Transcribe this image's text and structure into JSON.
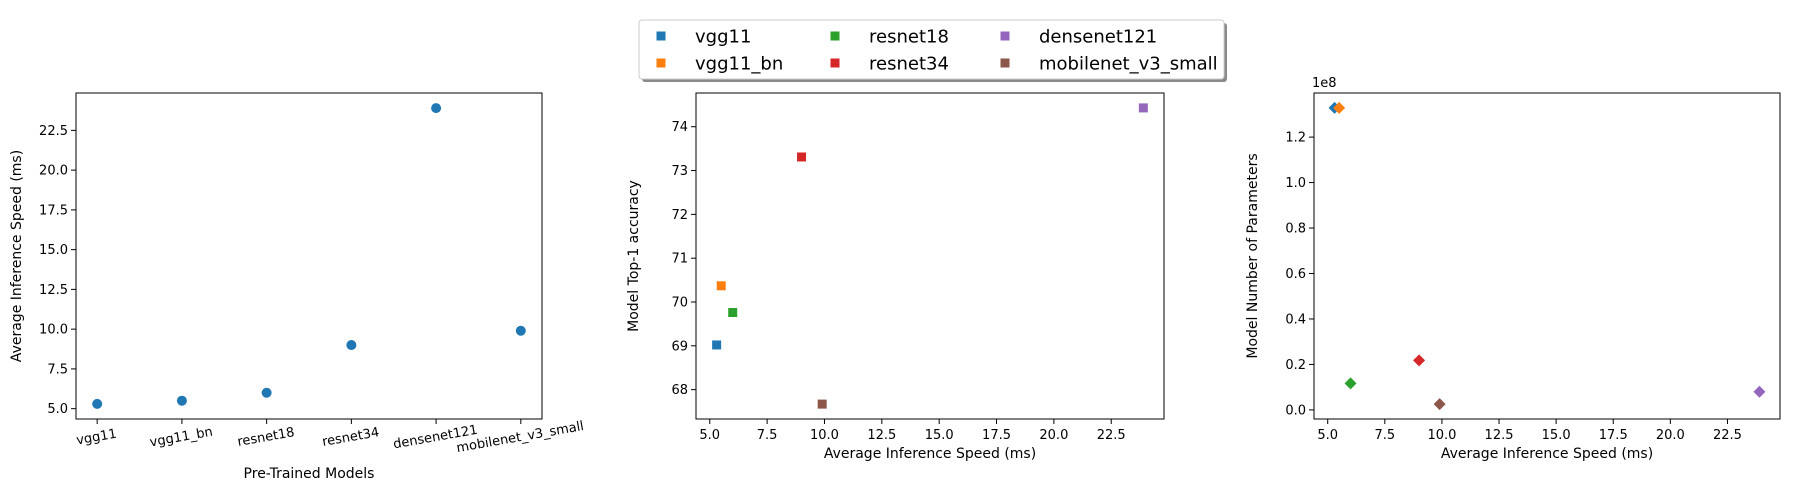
{
  "legend": {
    "entries": [
      {
        "name": "vgg11",
        "color": "#1f77b4"
      },
      {
        "name": "vgg11_bn",
        "color": "#ff7f0e"
      },
      {
        "name": "resnet18",
        "color": "#2ca02c"
      },
      {
        "name": "resnet34",
        "color": "#d62728"
      },
      {
        "name": "densenet121",
        "color": "#9467bd"
      },
      {
        "name": "mobilenet_v3_small",
        "color": "#8c564b"
      }
    ],
    "placement": "top-center",
    "columns": 3
  },
  "chart_data": [
    {
      "type": "scatter",
      "marker": "circle",
      "color": "#1f77b4",
      "categories": [
        "vgg11",
        "vgg11_bn",
        "resnet18",
        "resnet34",
        "densenet121",
        "mobilenet_v3_small"
      ],
      "values": [
        5.3,
        5.5,
        6.0,
        9.0,
        23.9,
        9.9
      ],
      "xlabel": "Pre-Trained Models",
      "ylabel": "Average Inference Speed (ms)",
      "ylim": [
        4.35,
        24.85
      ],
      "yticks": [
        5.0,
        7.5,
        10.0,
        12.5,
        15.0,
        17.5,
        20.0,
        22.5
      ],
      "ytick_labels": [
        "5.0",
        "7.5",
        "10.0",
        "12.5",
        "15.0",
        "17.5",
        "20.0",
        "22.5"
      ],
      "grid": false
    },
    {
      "type": "scatter",
      "marker": "square",
      "x": [
        5.3,
        5.5,
        6.0,
        9.0,
        23.9,
        9.9
      ],
      "y": [
        69.02,
        70.37,
        69.76,
        73.31,
        74.43,
        67.67
      ],
      "series_names": [
        "vgg11",
        "vgg11_bn",
        "resnet18",
        "resnet34",
        "densenet121",
        "mobilenet_v3_small"
      ],
      "xlabel": "Average Inference Speed (ms)",
      "ylabel": "Model Top-1 accuracy",
      "xlim": [
        4.4,
        24.8
      ],
      "ylim": [
        67.33,
        74.77
      ],
      "xticks": [
        5.0,
        7.5,
        10.0,
        12.5,
        15.0,
        17.5,
        20.0,
        22.5
      ],
      "xtick_labels": [
        "5.0",
        "7.5",
        "10.0",
        "12.5",
        "15.0",
        "17.5",
        "20.0",
        "22.5"
      ],
      "yticks": [
        68,
        69,
        70,
        71,
        72,
        73,
        74
      ],
      "ytick_labels": [
        "68",
        "69",
        "70",
        "71",
        "72",
        "73",
        "74"
      ],
      "grid": false
    },
    {
      "type": "scatter",
      "marker": "diamond",
      "x": [
        5.3,
        5.5,
        6.0,
        9.0,
        23.9,
        9.9
      ],
      "y": [
        132863336,
        132868840,
        11689512,
        21797672,
        7978856,
        2542856
      ],
      "series_names": [
        "vgg11",
        "vgg11_bn",
        "resnet18",
        "resnet34",
        "densenet121",
        "mobilenet_v3_small"
      ],
      "xlabel": "Average Inference Speed (ms)",
      "ylabel": "Model Number of Parameters",
      "offset_label": "1e8",
      "xlim": [
        4.4,
        24.8
      ],
      "ylim": [
        -4000000,
        139400000
      ],
      "xticks": [
        5.0,
        7.5,
        10.0,
        12.5,
        15.0,
        17.5,
        20.0,
        22.5
      ],
      "xtick_labels": [
        "5.0",
        "7.5",
        "10.0",
        "12.5",
        "15.0",
        "17.5",
        "20.0",
        "22.5"
      ],
      "yticks": [
        0,
        20000000,
        40000000,
        60000000,
        80000000,
        100000000,
        120000000
      ],
      "ytick_labels": [
        "0.0",
        "0.2",
        "0.4",
        "0.6",
        "0.8",
        "1.0",
        "1.2"
      ],
      "grid": false
    }
  ]
}
